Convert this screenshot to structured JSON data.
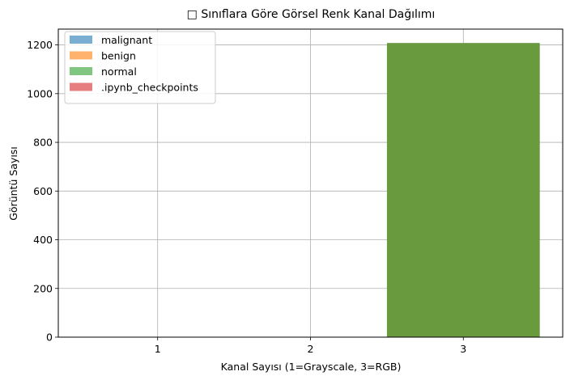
{
  "chart_data": {
    "type": "bar",
    "title": "□ Sınıflara Göre Görsel Renk Kanal Dağılımı",
    "xlabel": "Kanal Sayısı (1=Grayscale, 3=RGB)",
    "ylabel": "Görüntü Sayısı",
    "categories": [
      "1",
      "2",
      "3"
    ],
    "x_values": [
      1,
      2,
      3
    ],
    "xlim": [
      0.35,
      3.65
    ],
    "ylim": [
      0,
      1265
    ],
    "yticks": [
      0,
      200,
      400,
      600,
      800,
      1000,
      1200
    ],
    "grid": true,
    "legend_placement": "upper-left",
    "series": [
      {
        "name": "malignant",
        "color": "#1f77b4",
        "opacity": 0.6,
        "values": [
          0,
          0,
          0
        ]
      },
      {
        "name": "benign",
        "color": "#ff7f0e",
        "opacity": 0.6,
        "values": [
          0,
          0,
          0
        ]
      },
      {
        "name": "normal",
        "color": "#2ca02c",
        "opacity": 0.6,
        "values": [
          0,
          0,
          1208
        ]
      },
      {
        "name": ".ipynb_checkpoints",
        "color": "#d62728",
        "opacity": 0.6,
        "values": [
          0,
          0,
          0
        ]
      }
    ],
    "observed_overlay_color": "#6a9a3e"
  }
}
